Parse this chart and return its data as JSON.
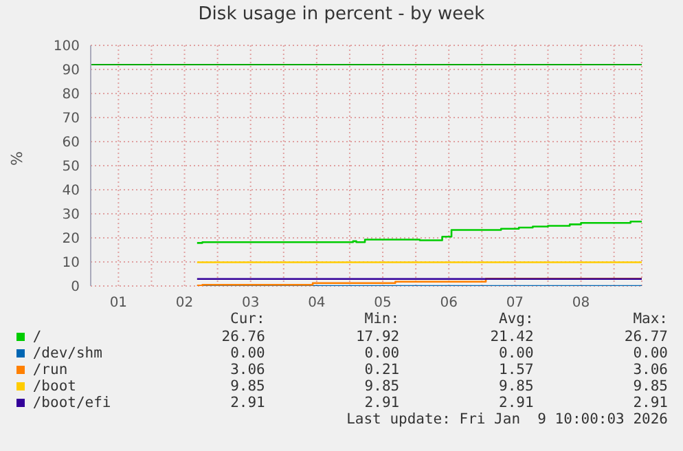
{
  "chart_data": {
    "type": "step",
    "title": "Disk usage in percent - by week",
    "ylabel": "%",
    "xlim": [
      0.08,
      8.42
    ],
    "xticks": [
      {
        "value": 0.5,
        "label": "01"
      },
      {
        "value": 1,
        "label": null
      },
      {
        "value": 1.5,
        "label": "02"
      },
      {
        "value": 2,
        "label": null
      },
      {
        "value": 2.5,
        "label": "03"
      },
      {
        "value": 3,
        "label": null
      },
      {
        "value": 3.5,
        "label": "04"
      },
      {
        "value": 4,
        "label": null
      },
      {
        "value": 4.5,
        "label": "05"
      },
      {
        "value": 5,
        "label": null
      },
      {
        "value": 5.5,
        "label": "06"
      },
      {
        "value": 6,
        "label": null
      },
      {
        "value": 6.5,
        "label": "07"
      },
      {
        "value": 7,
        "label": null
      },
      {
        "value": 7.5,
        "label": "08"
      },
      {
        "value": 8,
        "label": null
      }
    ],
    "ylim": [
      0,
      100
    ],
    "yticks": [
      0,
      10,
      20,
      30,
      40,
      50,
      60,
      70,
      80,
      90,
      100
    ],
    "grid": true,
    "legend": "bottom",
    "marker": "none",
    "line_style": "solid",
    "series": [
      {
        "name": "/",
        "color": "#00cc00",
        "x": [
          1.69,
          1.77,
          4.0,
          4.05,
          4.1,
          4.23,
          5.06,
          5.29,
          5.4,
          5.54,
          6.29,
          6.56,
          6.77,
          7.0,
          7.33,
          7.5,
          8.25,
          8.42
        ],
        "values": [
          17.9,
          18.2,
          18.2,
          18.6,
          18.2,
          19.3,
          19.0,
          19.0,
          20.5,
          23.3,
          23.8,
          24.3,
          24.7,
          25.0,
          25.6,
          26.2,
          26.8,
          26.8
        ]
      },
      {
        "name": "/dev/shm",
        "color": "#0066b3",
        "x": [
          1.69,
          8.42
        ],
        "values": [
          0,
          0
        ]
      },
      {
        "name": "/run",
        "color": "#ff8000",
        "x": [
          1.69,
          1.77,
          3.44,
          4.69,
          6.06,
          8.42
        ],
        "values": [
          0.21,
          0.5,
          1.2,
          1.8,
          3.06,
          3.06
        ]
      },
      {
        "name": "/boot",
        "color": "#ffcc00",
        "x": [
          1.69,
          8.42
        ],
        "values": [
          9.85,
          9.85
        ]
      },
      {
        "name": "/boot/efi",
        "color": "#330099",
        "x": [
          1.69,
          8.42
        ],
        "values": [
          2.91,
          2.91
        ]
      }
    ],
    "ref_lines": [
      {
        "axis": "y",
        "value": 92,
        "label": null,
        "color": "#00aa00",
        "line_style": "solid"
      }
    ],
    "annotations": [
      "Cur:",
      "Min:",
      "Avg:",
      "Max:",
      "26.76",
      "17.92",
      "21.42",
      "26.77",
      "0.00",
      "0.00",
      "0.00",
      "0.00",
      "3.06",
      "0.21",
      "1.57",
      "3.06",
      "9.85",
      "9.85",
      "9.85",
      "9.85",
      "2.91",
      "2.91",
      "2.91",
      "2.91",
      "Last update: Fri Jan  9 10:00:03 2026"
    ]
  }
}
